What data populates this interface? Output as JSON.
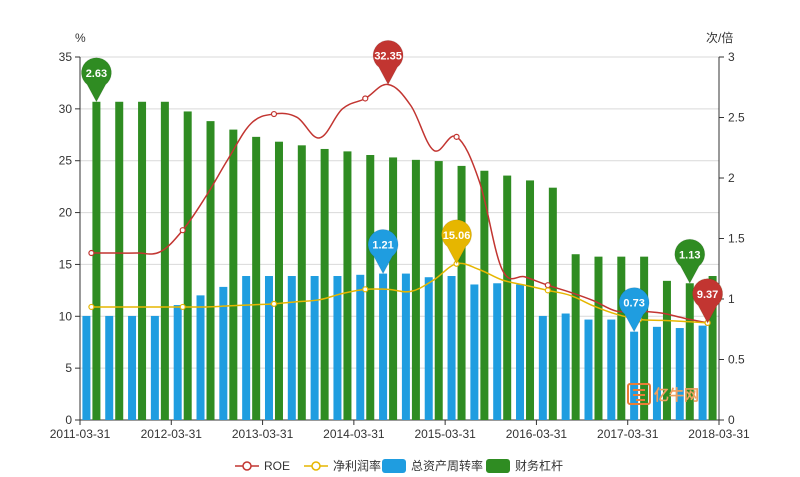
{
  "chart_data": {
    "type": "bar+line",
    "left_axis": {
      "label": "%",
      "ticks": [
        "0",
        "5",
        "10",
        "15",
        "20",
        "25",
        "30",
        "35"
      ],
      "ylim": [
        0,
        35
      ]
    },
    "right_axis": {
      "label": "次/倍",
      "ticks": [
        "0",
        "0.5",
        "1",
        "1.5",
        "2",
        "2.5",
        "3"
      ],
      "ylim": [
        0,
        3
      ]
    },
    "x_tick_labels": [
      "2011-03-31",
      "2012-03-31",
      "2013-03-31",
      "2014-03-31",
      "2015-03-31",
      "2016-03-31",
      "2017-03-31",
      "2018-03-31"
    ],
    "grid": true,
    "legend_position": "bottom",
    "series": [
      {
        "name": "ROE",
        "kind": "line",
        "axis": "left",
        "color": "#c23531",
        "values": [
          16.1,
          16.1,
          16.1,
          16.2,
          18.3,
          21.5,
          25.2,
          28.6,
          29.5,
          29.2,
          27.2,
          30.0,
          31.0,
          32.35,
          30.3,
          26.0,
          27.3,
          23.0,
          14.5,
          13.8,
          13.0,
          12.3,
          11.5,
          10.5,
          10.5,
          10.3,
          9.8,
          9.37
        ]
      },
      {
        "name": "净利润率",
        "kind": "line",
        "axis": "left",
        "color": "#e6b600",
        "values": [
          10.9,
          10.9,
          10.9,
          10.9,
          10.9,
          10.9,
          11.0,
          11.1,
          11.2,
          11.4,
          11.6,
          12.2,
          12.6,
          12.6,
          12.4,
          13.5,
          15.06,
          14.5,
          13.5,
          13.0,
          12.5,
          12.0,
          11.0,
          10.2,
          9.7,
          9.6,
          9.5,
          9.37
        ]
      },
      {
        "name": "总资产周转率",
        "kind": "bar",
        "axis": "right",
        "color": "#1f9de0",
        "values": [
          0.86,
          0.86,
          0.86,
          0.86,
          0.95,
          1.03,
          1.1,
          1.19,
          1.19,
          1.19,
          1.19,
          1.19,
          1.2,
          1.21,
          1.21,
          1.18,
          1.19,
          1.12,
          1.13,
          1.12,
          0.86,
          0.88,
          0.83,
          0.83,
          0.73,
          0.77,
          0.76,
          0.78
        ]
      },
      {
        "name": "财务杠杆",
        "kind": "bar",
        "axis": "right",
        "color": "#2f8c22",
        "values": [
          2.63,
          2.63,
          2.63,
          2.63,
          2.55,
          2.47,
          2.4,
          2.34,
          2.3,
          2.27,
          2.24,
          2.22,
          2.19,
          2.17,
          2.15,
          2.14,
          2.1,
          2.06,
          2.02,
          1.98,
          1.92,
          1.37,
          1.35,
          1.35,
          1.35,
          1.15,
          1.13,
          1.19
        ]
      }
    ],
    "markers": [
      {
        "series": "财务杠杆",
        "index": 0,
        "label": "2.63"
      },
      {
        "series": "ROE",
        "index": 13,
        "label": "32.35"
      },
      {
        "series": "总资产周转率",
        "index": 13,
        "label": "1.21"
      },
      {
        "series": "净利润率",
        "index": 16,
        "label": "15.06"
      },
      {
        "series": "总资产周转率",
        "index": 24,
        "label": "0.73"
      },
      {
        "series": "财务杠杆",
        "index": 26,
        "label": "1.13"
      },
      {
        "series": "净利润率",
        "index": 27,
        "label": "9.37"
      },
      {
        "series": "ROE",
        "index": 27,
        "label": "9.37"
      }
    ]
  },
  "watermark": "亿牛网"
}
